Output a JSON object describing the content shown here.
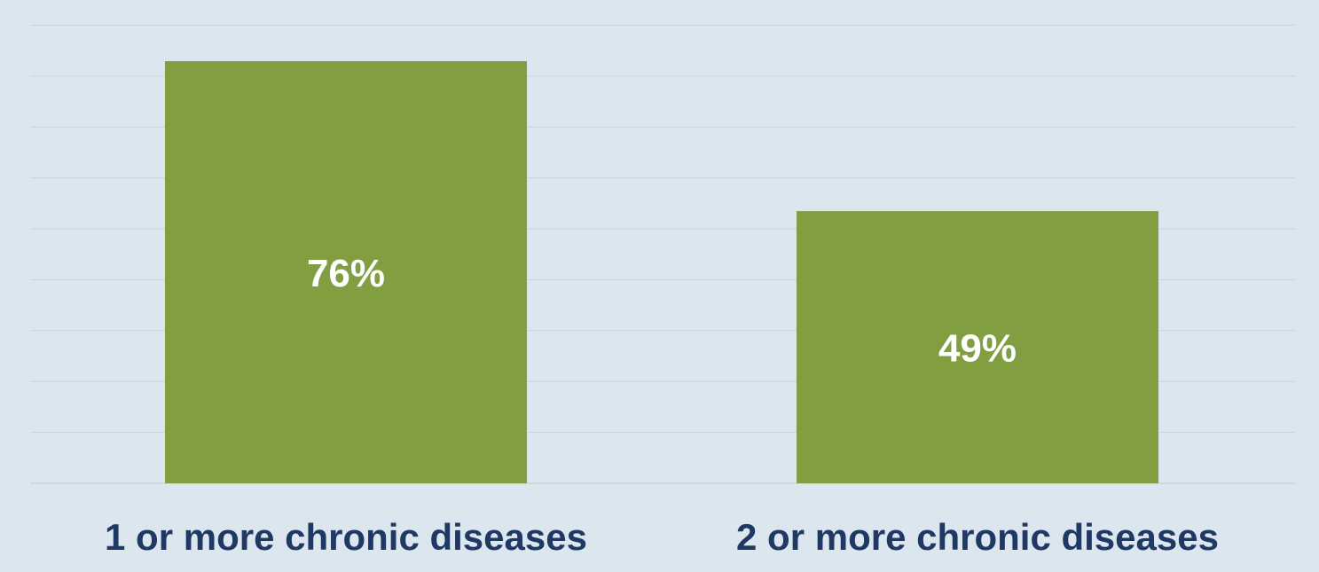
{
  "chart_data": {
    "type": "bar",
    "categories": [
      "1 or more chronic diseases",
      "2 or more chronic diseases"
    ],
    "values": [
      76,
      49
    ],
    "value_labels": [
      "76%",
      "49%"
    ],
    "title": "",
    "xlabel": "",
    "ylabel": "",
    "ylim": [
      0,
      80
    ],
    "grid": true,
    "legend": "none"
  },
  "colors": {
    "background": "#dce6ee",
    "bar": "#819f41",
    "bar_label": "#ffffff",
    "category_label": "#1f3864",
    "gridline": "#c9d3da"
  }
}
